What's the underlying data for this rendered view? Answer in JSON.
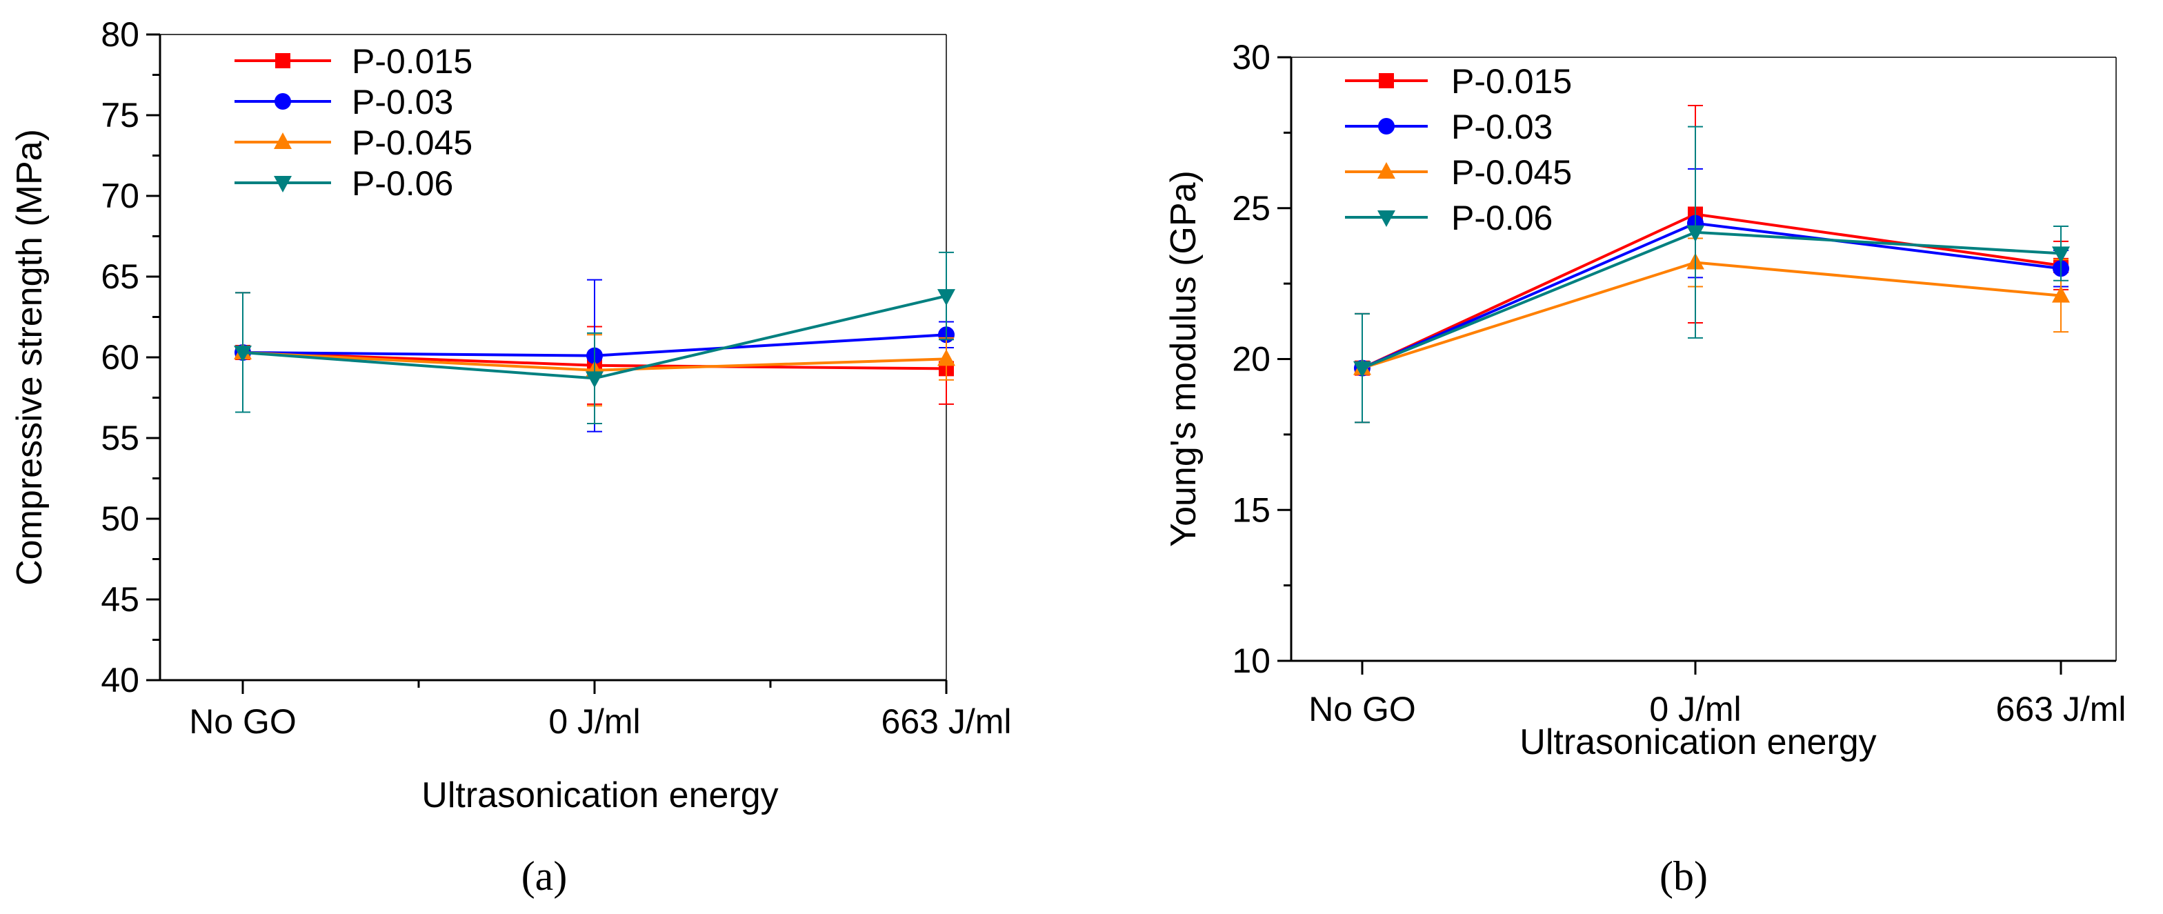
{
  "chart_data": [
    {
      "type": "line",
      "panel_label": "(a)",
      "xlabel": "Ultrasonication energy",
      "ylabel": "Compressive strength (MPa)",
      "categories": [
        "No GO",
        "0 J/ml",
        "663 J/ml"
      ],
      "ylim": [
        40,
        80
      ],
      "yticks": [
        40,
        45,
        50,
        55,
        60,
        65,
        70,
        75,
        80
      ],
      "ytick_labels": [
        "40",
        "45",
        "50",
        "55",
        "60",
        "65",
        "70",
        "75",
        "80"
      ],
      "legend_position": "top-left",
      "grid": false,
      "series": [
        {
          "name": "P-0.015",
          "color": "#ff0000",
          "marker": "square",
          "values": [
            60.3,
            59.5,
            59.3
          ],
          "errors": [
            3.7,
            2.4,
            2.2
          ]
        },
        {
          "name": "P-0.03",
          "color": "#0000ff",
          "marker": "circle",
          "values": [
            60.3,
            60.1,
            61.4
          ],
          "errors": [
            3.7,
            4.7,
            0.8
          ]
        },
        {
          "name": "P-0.045",
          "color": "#ff8000",
          "marker": "triangle-up",
          "values": [
            60.3,
            59.2,
            59.9
          ],
          "errors": [
            3.7,
            2.2,
            1.3
          ]
        },
        {
          "name": "P-0.06",
          "color": "#008080",
          "marker": "triangle-down",
          "values": [
            60.3,
            58.7,
            63.8
          ],
          "errors": [
            3.7,
            2.8,
            2.7
          ]
        }
      ]
    },
    {
      "type": "line",
      "panel_label": "(b)",
      "xlabel": "Ultrasonication energy",
      "ylabel": "Young's modulus (GPa)",
      "categories": [
        "No GO",
        "0 J/ml",
        "663 J/ml"
      ],
      "ylim": [
        10,
        30
      ],
      "yticks": [
        10,
        15,
        20,
        25,
        30
      ],
      "ytick_labels": [
        "10",
        "15",
        "20",
        "25",
        "30"
      ],
      "legend_position": "top-left",
      "grid": false,
      "series": [
        {
          "name": "P-0.015",
          "color": "#ff0000",
          "marker": "square",
          "values": [
            19.7,
            24.8,
            23.1
          ],
          "errors": [
            1.8,
            3.6,
            0.8
          ]
        },
        {
          "name": "P-0.03",
          "color": "#0000ff",
          "marker": "circle",
          "values": [
            19.7,
            24.5,
            23.0
          ],
          "errors": [
            1.8,
            1.8,
            0.6
          ]
        },
        {
          "name": "P-0.045",
          "color": "#ff8000",
          "marker": "triangle-up",
          "values": [
            19.7,
            23.2,
            22.1
          ],
          "errors": [
            1.8,
            0.8,
            1.2
          ]
        },
        {
          "name": "P-0.06",
          "color": "#008080",
          "marker": "triangle-down",
          "values": [
            19.7,
            24.2,
            23.5
          ],
          "errors": [
            1.8,
            3.5,
            0.9
          ]
        }
      ]
    }
  ]
}
